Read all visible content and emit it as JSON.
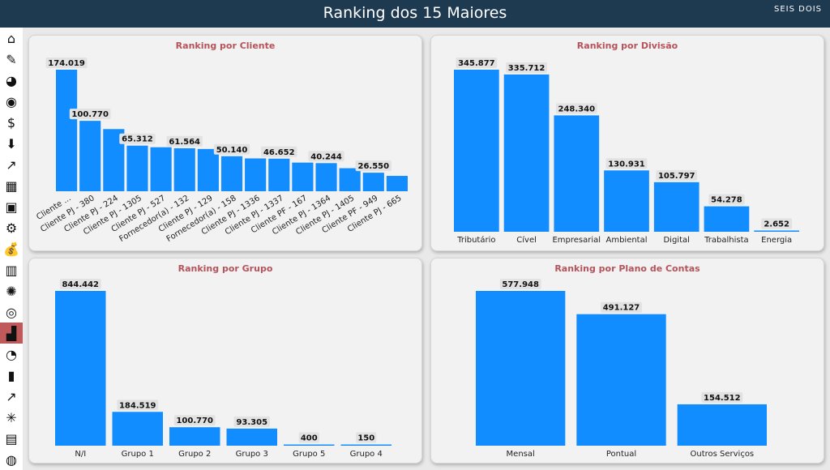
{
  "header": {
    "title": "Ranking dos 15 Maiores",
    "logo": "SEIS DOIS"
  },
  "sidebar": {
    "items": [
      {
        "icon": "home-icon",
        "glyph": "⌂"
      },
      {
        "icon": "report-edit-icon",
        "glyph": "✎"
      },
      {
        "icon": "pie-chart-icon",
        "glyph": "◕"
      },
      {
        "icon": "gauge-icon",
        "glyph": "◉"
      },
      {
        "icon": "money-hand-icon",
        "glyph": "$"
      },
      {
        "icon": "down-arrow-money-icon",
        "glyph": "⬇"
      },
      {
        "icon": "growth-chart-icon",
        "glyph": "↗"
      },
      {
        "icon": "table-icon",
        "glyph": "▦"
      },
      {
        "icon": "dashboard-icon",
        "glyph": "▣"
      },
      {
        "icon": "money-network-icon",
        "glyph": "⚙"
      },
      {
        "icon": "money-bag-icon",
        "glyph": "💰"
      },
      {
        "icon": "bar-search-icon",
        "glyph": "▥"
      },
      {
        "icon": "money-sun-icon",
        "glyph": "✺"
      },
      {
        "icon": "target-icon",
        "glyph": "◎"
      },
      {
        "icon": "podium-icon",
        "glyph": "▟",
        "active": true
      },
      {
        "icon": "trend-chart-icon",
        "glyph": "◔"
      },
      {
        "icon": "savings-icon",
        "glyph": "▮"
      },
      {
        "icon": "money-growth-icon",
        "glyph": "↗"
      },
      {
        "icon": "tree-icon",
        "glyph": "✳"
      },
      {
        "icon": "bar-people-icon",
        "glyph": "▤"
      },
      {
        "icon": "globe-icon",
        "glyph": "◍"
      }
    ]
  },
  "chart_data": [
    {
      "type": "bar",
      "title": "Ranking por Cliente",
      "categories": [
        "Cliente ...",
        "Cliente PJ - 380",
        "Cliente PJ - 224",
        "Cliente PJ - 1305",
        "Cliente PJ - 527",
        "Fornecedor(a) - 132",
        "Cliente PJ - 129",
        "Fornecedor(a) - 158",
        "Cliente PJ - 1336",
        "Cliente PJ - 1337",
        "Cliente PF - 167",
        "Cliente PJ - 1364",
        "Cliente PJ - 1405",
        "Cliente PF - 949",
        "Cliente PJ - 665"
      ],
      "values": [
        174019,
        100770,
        89000,
        65312,
        63000,
        61564,
        60500,
        50140,
        47000,
        46652,
        41000,
        40244,
        33000,
        26550,
        22000
      ],
      "data_labels": [
        "174.019",
        "100.770",
        null,
        "65.312",
        null,
        "61.564",
        null,
        "50.140",
        null,
        "46.652",
        null,
        "40.244",
        null,
        "26.550",
        null
      ],
      "rotate_labels": true
    },
    {
      "type": "bar",
      "title": "Ranking por Divisão",
      "categories": [
        "Tributário",
        "Cível",
        "Empresarial",
        "Ambiental",
        "Digital",
        "Trabalhista",
        "Energia"
      ],
      "values": [
        345877,
        335712,
        248340,
        130931,
        105797,
        54278,
        2652
      ],
      "data_labels": [
        "345.877",
        "335.712",
        "248.340",
        "130.931",
        "105.797",
        "54.278",
        "2.652"
      ]
    },
    {
      "type": "bar",
      "title": "Ranking por Grupo",
      "categories": [
        "N/I",
        "Grupo 1",
        "Grupo 2",
        "Grupo 3",
        "Grupo 5",
        "Grupo 4"
      ],
      "values": [
        844442,
        184519,
        100770,
        93305,
        400,
        150
      ],
      "data_labels": [
        "844.442",
        "184.519",
        "100.770",
        "93.305",
        "400",
        "150"
      ]
    },
    {
      "type": "bar",
      "title": "Ranking por Plano de Contas",
      "categories": [
        "Mensal",
        "Pontual",
        "Outros Serviços"
      ],
      "values": [
        577948,
        491127,
        154512
      ],
      "data_labels": [
        "577.948",
        "491.127",
        "154.512"
      ]
    }
  ],
  "colors": {
    "bar": "#118dff",
    "title": "#b5535b",
    "header": "#1e3a51"
  }
}
